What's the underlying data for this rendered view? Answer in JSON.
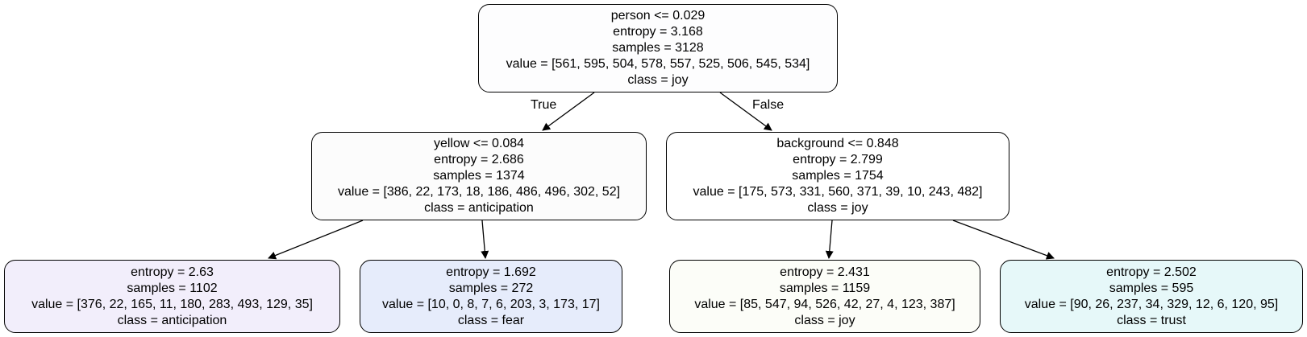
{
  "colors": {
    "node_root": "#fdfdfe",
    "node_anticipation_split": "#fcfcfc",
    "node_joy_split": "#ffffff",
    "leaf_anticipation": "#f2eefb",
    "leaf_fear": "#e6ecfb",
    "leaf_joy": "#fcfdf8",
    "leaf_trust": "#e6f8f9",
    "edge": "#000000"
  },
  "edges": {
    "true_label": "True",
    "false_label": "False"
  },
  "nodes": [
    {
      "id": "n0",
      "color_key": "node_root",
      "lines": [
        "person <= 0.029",
        "entropy = 3.168",
        "samples = 3128",
        "value = [561, 595, 504, 578, 557, 525, 506, 545, 534]",
        "class = joy"
      ]
    },
    {
      "id": "n1",
      "color_key": "node_anticipation_split",
      "lines": [
        "yellow <= 0.084",
        "entropy = 2.686",
        "samples = 1374",
        "value = [386, 22, 173, 18, 186, 486, 496, 302, 52]",
        "class = anticipation"
      ]
    },
    {
      "id": "n2",
      "color_key": "node_joy_split",
      "lines": [
        "background <= 0.848",
        "entropy = 2.799",
        "samples = 1754",
        "value = [175, 573, 331, 560, 371, 39, 10, 243, 482]",
        "class = joy"
      ]
    },
    {
      "id": "n3",
      "color_key": "leaf_anticipation",
      "lines": [
        "entropy = 2.63",
        "samples = 1102",
        "value = [376, 22, 165, 11, 180, 283, 493, 129, 35]",
        "class = anticipation"
      ]
    },
    {
      "id": "n4",
      "color_key": "leaf_fear",
      "lines": [
        "entropy = 1.692",
        "samples = 272",
        "value = [10, 0, 8, 7, 6, 203, 3, 173, 17]",
        "class = fear"
      ]
    },
    {
      "id": "n5",
      "color_key": "leaf_joy",
      "lines": [
        "entropy = 2.431",
        "samples = 1159",
        "value = [85, 547, 94, 526, 42, 27, 4, 123, 387]",
        "class = joy"
      ]
    },
    {
      "id": "n6",
      "color_key": "leaf_trust",
      "lines": [
        "entropy = 2.502",
        "samples = 595",
        "value = [90, 26, 237, 34, 329, 12, 6, 120, 95]",
        "class = trust"
      ]
    }
  ]
}
